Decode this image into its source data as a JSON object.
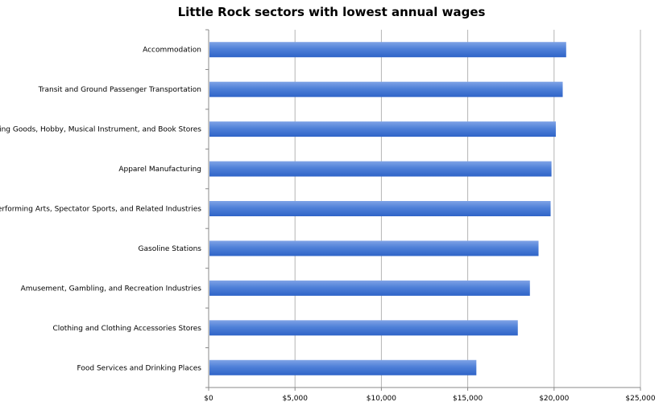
{
  "chart_data": {
    "type": "bar",
    "orientation": "horizontal",
    "title": "Little Rock sectors with lowest annual wages",
    "xlabel": "",
    "ylabel": "",
    "categories": [
      "Accommodation",
      "Transit and Ground Passenger Transportation",
      "Sporting Goods, Hobby, Musical Instrument, and Book Stores",
      "Apparel Manufacturing",
      "Performing Arts, Spectator Sports, and Related Industries",
      "Gasoline Stations",
      "Amusement, Gambling, and Recreation Industries",
      "Clothing and Clothing Accessories Stores",
      "Food Services and Drinking Places"
    ],
    "values": [
      20700,
      20500,
      20100,
      19850,
      19800,
      19100,
      18600,
      17900,
      15500
    ],
    "xlim": [
      0,
      25000
    ],
    "xticks": [
      0,
      5000,
      10000,
      15000,
      20000,
      25000
    ],
    "xtick_labels": [
      "$0",
      "$5,000",
      "$10,000",
      "$15,000",
      "$20,000",
      "$25,000"
    ],
    "grid": "vertical",
    "legend": "none",
    "bar_color_top": "#7fa3e6",
    "bar_color_bottom": "#2f64c8"
  }
}
